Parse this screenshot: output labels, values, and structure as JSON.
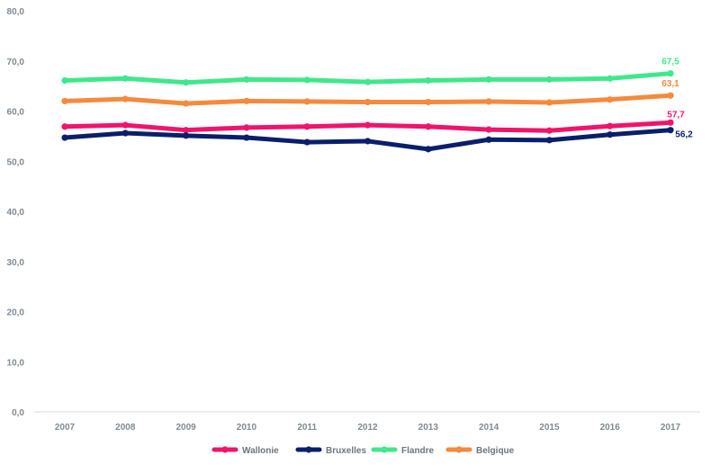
{
  "chart_data": {
    "type": "line",
    "categories": [
      "2007",
      "2008",
      "2009",
      "2010",
      "2011",
      "2012",
      "2013",
      "2014",
      "2015",
      "2016",
      "2017"
    ],
    "ylim": [
      0,
      80
    ],
    "yticks": [
      0,
      10,
      20,
      30,
      40,
      50,
      60,
      70,
      80
    ],
    "ytick_labels": [
      "0,0",
      "10,0",
      "20,0",
      "30,0",
      "40,0",
      "50,0",
      "60,0",
      "70,0",
      "80,0"
    ],
    "grid": false,
    "legend_position": "bottom",
    "series": [
      {
        "name": "Wallonie",
        "color": "#f0146a",
        "values": [
          56.9,
          57.2,
          56.2,
          56.7,
          56.9,
          57.2,
          56.9,
          56.3,
          56.1,
          57.0,
          57.7
        ],
        "end_label": "57,7"
      },
      {
        "name": "Bruxelles",
        "color": "#0a1f6b",
        "values": [
          54.7,
          55.6,
          55.1,
          54.7,
          53.8,
          54.0,
          52.4,
          54.3,
          54.2,
          55.3,
          56.2
        ],
        "end_label": "56,2"
      },
      {
        "name": "Flandre",
        "color": "#3ee88c",
        "values": [
          66.1,
          66.5,
          65.7,
          66.3,
          66.2,
          65.8,
          66.1,
          66.3,
          66.3,
          66.5,
          67.5
        ],
        "end_label": "67,5"
      },
      {
        "name": "Belgique",
        "color": "#f58a3c",
        "values": [
          62.0,
          62.4,
          61.5,
          62.0,
          61.9,
          61.8,
          61.8,
          61.9,
          61.7,
          62.3,
          63.1
        ],
        "end_label": "63,1"
      }
    ]
  }
}
